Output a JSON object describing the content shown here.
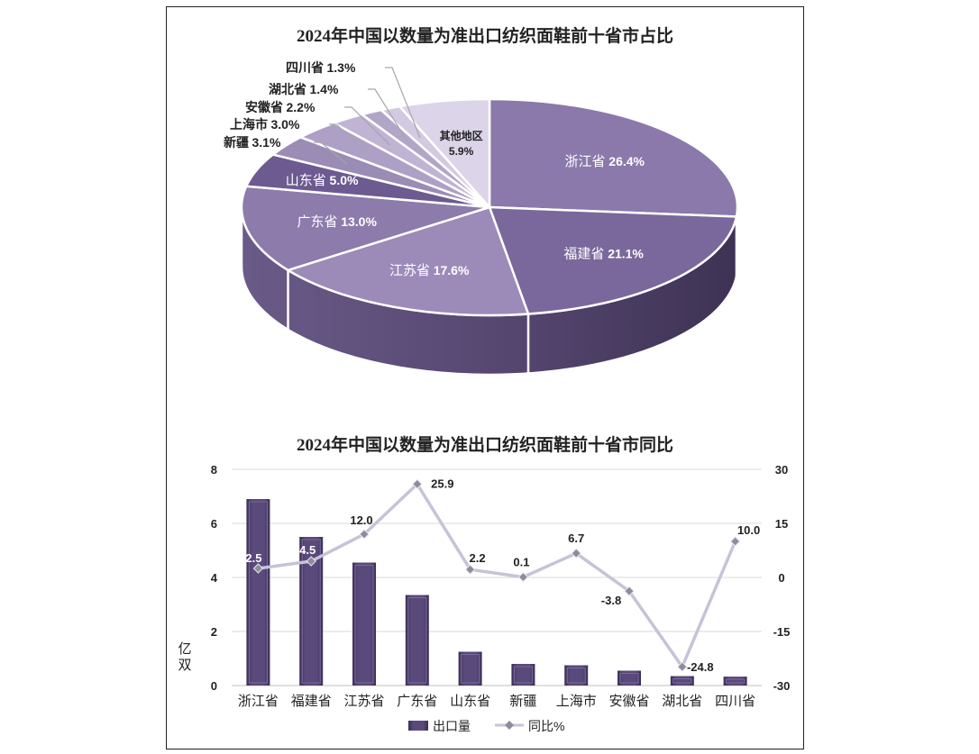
{
  "chart_data": [
    {
      "type": "pie",
      "title": "2024年中国以数量为准出口纺织面鞋前十省市占比",
      "categories": [
        "浙江省",
        "福建省",
        "江苏省",
        "广东省",
        "山东省",
        "新疆",
        "上海市",
        "安徽省",
        "湖北省",
        "四川省",
        "其他地区"
      ],
      "values": [
        26.4,
        21.1,
        17.6,
        13.0,
        5.0,
        3.1,
        3.0,
        2.2,
        1.4,
        1.3,
        5.9
      ],
      "labels": [
        "浙江省 26.4%",
        "福建省 21.1%",
        "江苏省 17.6%",
        "广东省 13.0%",
        "山东省 5.0%",
        "新疆 3.1%",
        "上海市 3.0%",
        "安徽省 2.2%",
        "湖北省 1.4%",
        "四川省 1.3%",
        "其他地区 5.9%"
      ],
      "colors": [
        "#8a79aa",
        "#7a689c",
        "#9c8bb8",
        "#8c7bab",
        "#6c5a90",
        "#9b8cb6",
        "#ae9fc6",
        "#c0b3d4",
        "#b2a6c8",
        "#d3c9e1",
        "#dcd4e8"
      ]
    },
    {
      "type": "bar+line",
      "title": "2024年中国以数量为准出口纺织面鞋前十省市同比",
      "categories": [
        "浙江省",
        "福建省",
        "江苏省",
        "广东省",
        "山东省",
        "新疆",
        "上海市",
        "安徽省",
        "湖北省",
        "四川省"
      ],
      "series": [
        {
          "name": "出口量",
          "type": "bar",
          "axis": "left",
          "values": [
            6.9,
            5.5,
            4.55,
            3.35,
            1.25,
            0.8,
            0.75,
            0.55,
            0.35,
            0.33
          ],
          "color": "#4f3f6e"
        },
        {
          "name": "同比%",
          "type": "line",
          "axis": "right",
          "values": [
            2.5,
            4.5,
            12.0,
            25.9,
            2.2,
            0.1,
            6.7,
            -3.8,
            -24.8,
            10.0
          ],
          "color": "#c8c2d8"
        }
      ],
      "ylabel_left": "亿双",
      "ylim_left": [
        0,
        8
      ],
      "yticks_left": [
        "0",
        "2",
        "4",
        "6",
        "8"
      ],
      "ylim_right": [
        -30,
        30
      ],
      "yticks_right": [
        "-30",
        "-15",
        "0",
        "15",
        "30"
      ],
      "grid": true,
      "legend": "bottom",
      "line_labels": [
        "2.5",
        "4.5",
        "12.0",
        "25.9",
        "2.2",
        "0.1",
        "6.7",
        "-3.8",
        "-24.8",
        "10.0"
      ]
    }
  ]
}
